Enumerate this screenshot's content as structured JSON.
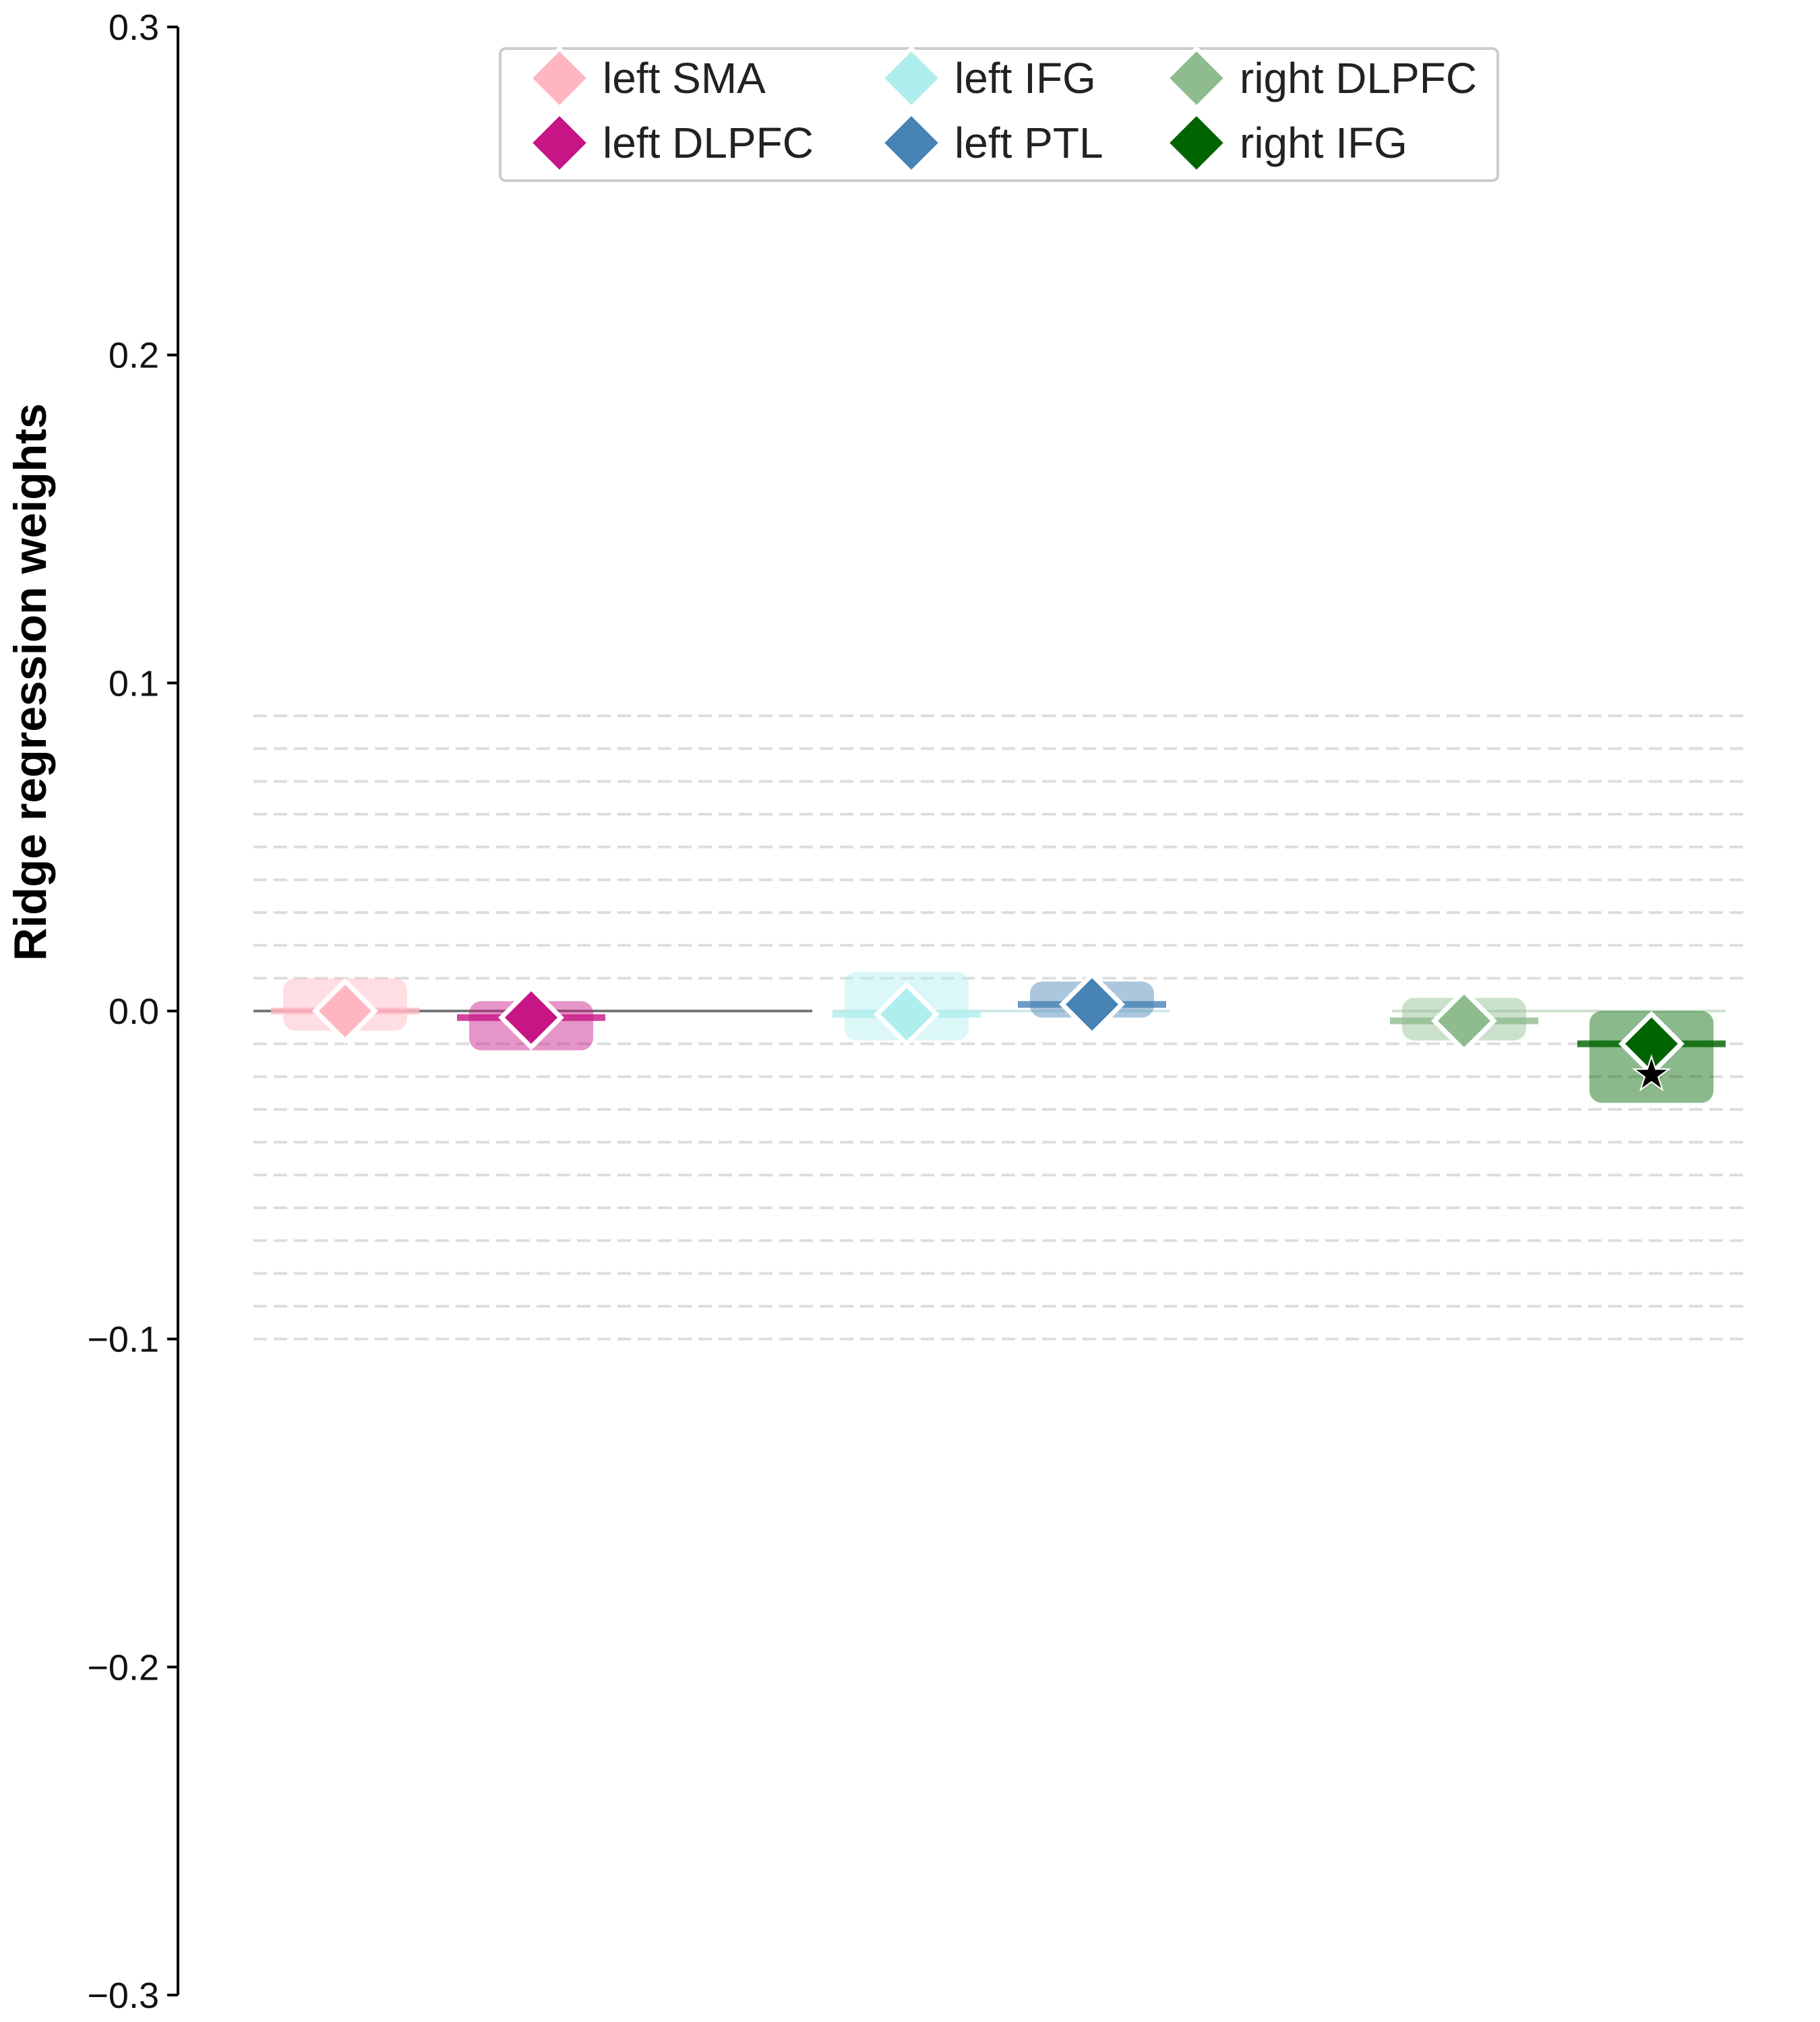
{
  "chart_data": {
    "type": "scatter",
    "ylabel": "Ridge regression weights",
    "ylim": [
      -0.3,
      0.3
    ],
    "yticks": [
      0.3,
      0.2,
      0.1,
      0.0,
      -0.1,
      -0.2,
      -0.3
    ],
    "ytick_labels": [
      "0.3",
      "0.2",
      "0.1",
      "0.0",
      "−0.1",
      "−0.2",
      "−0.3"
    ],
    "reference_lines": [
      0.09,
      0.08,
      0.07,
      0.06,
      0.05,
      0.04,
      0.03,
      0.02,
      0.01,
      -0.01,
      -0.02,
      -0.03,
      -0.04,
      -0.05,
      -0.06,
      -0.07,
      -0.08,
      -0.09,
      -0.1
    ],
    "zero_line": {
      "value": 0.0
    },
    "legend": {
      "placement": "top-center",
      "columns": 3
    },
    "series": [
      {
        "name": "left SMA",
        "color": "#ffb6c1",
        "group": 1,
        "mean": 0.0,
        "range": [
          -0.006,
          0.01
        ],
        "significant": false
      },
      {
        "name": "left DLPFC",
        "color": "#c71585",
        "group": 1,
        "mean": -0.002,
        "range": [
          -0.012,
          0.003
        ],
        "significant": false
      },
      {
        "name": "left IFG",
        "color": "#afeeee",
        "group": 2,
        "mean": -0.001,
        "range": [
          -0.009,
          0.012
        ],
        "significant": false
      },
      {
        "name": "left PTL",
        "color": "#4682b4",
        "group": 2,
        "mean": 0.002,
        "range": [
          -0.002,
          0.009
        ],
        "significant": false
      },
      {
        "name": "right DLPFC",
        "color": "#8fbc8f",
        "group": 3,
        "mean": -0.003,
        "range": [
          -0.009,
          0.004
        ],
        "significant": false
      },
      {
        "name": "right IFG",
        "color": "#006400",
        "group": 3,
        "mean": -0.01,
        "range": [
          -0.028,
          0.0
        ],
        "significant": true,
        "marker": "★"
      }
    ]
  }
}
